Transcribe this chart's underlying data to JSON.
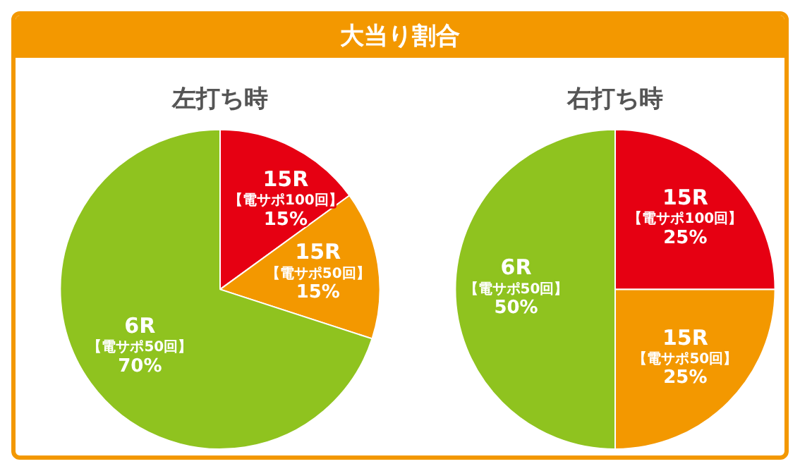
{
  "chart_data": [
    {
      "type": "pie",
      "title": "左打ち時",
      "annotations": [
        "大当り割合"
      ],
      "categories": [
        "15R 【電サポ100回】",
        "15R 【電サポ50回】",
        "6R 【電サポ50回】"
      ],
      "values": [
        15,
        15,
        70
      ],
      "value_labels": [
        "15%",
        "15%",
        "70%"
      ],
      "colors": [
        "#e60012",
        "#f39800",
        "#8fc31f"
      ],
      "legend": false
    },
    {
      "type": "pie",
      "title": "右打ち時",
      "categories": [
        "15R 【電サポ100回】",
        "15R 【電サポ50回】",
        "6R 【電サポ50回】"
      ],
      "values": [
        25,
        25,
        50
      ],
      "value_labels": [
        "25%",
        "25%",
        "50%"
      ],
      "colors": [
        "#e60012",
        "#f39800",
        "#8fc31f"
      ],
      "legend": false
    }
  ]
}
